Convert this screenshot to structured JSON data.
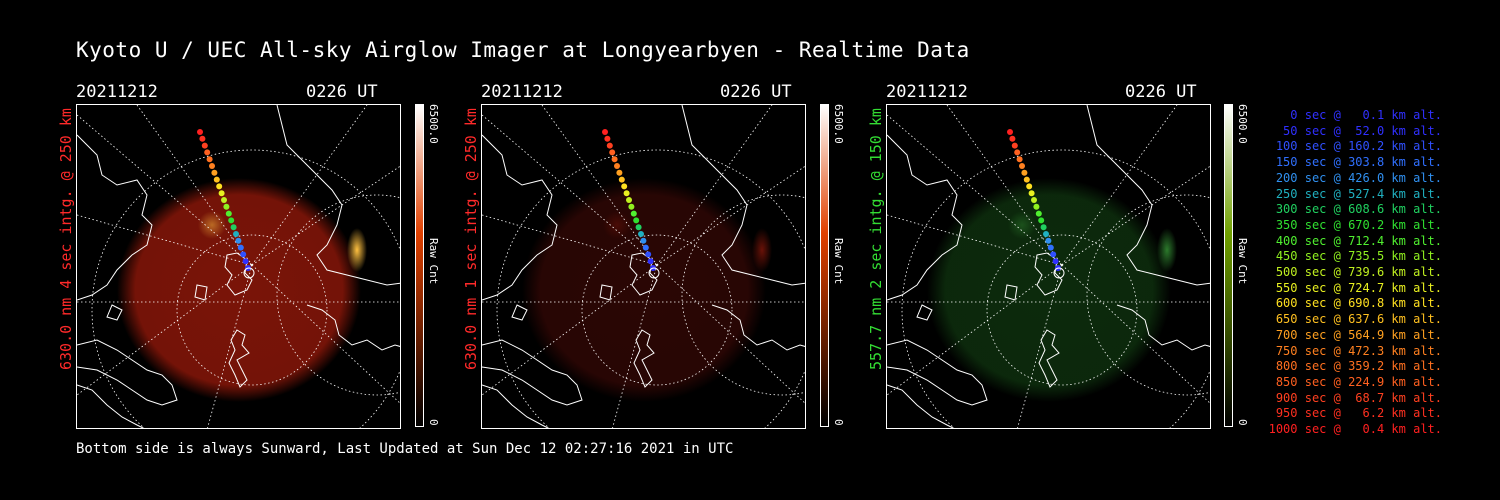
{
  "title": "Kyoto U / UEC All-sky Airglow Imager at Longyearbyen - Realtime Data",
  "panels": [
    {
      "date": "20211212",
      "time": "0226 UT",
      "label": "630.0 nm 4 sec intg. @ 250 km",
      "label_color": "#ff2a2a",
      "cbar_max": "6500.0",
      "cbar_min": "0",
      "cbar_unit": "Raw Cnt",
      "glow_color": "#7a1408",
      "bright_color": "#ffc040",
      "cbar_top": "#ffffff",
      "cbar_mid": "#e04000",
      "cbar_bottom": "#000000"
    },
    {
      "date": "20211212",
      "time": "0226 UT",
      "label": "630.0 nm 1 sec intg. @ 250 km",
      "label_color": "#ff2a2a",
      "cbar_max": "6500.0",
      "cbar_min": "0",
      "cbar_unit": "Raw Cnt",
      "glow_color": "#2a0604",
      "bright_color": "#6a1208",
      "cbar_top": "#ffffff",
      "cbar_mid": "#e04000",
      "cbar_bottom": "#000000"
    },
    {
      "date": "20211212",
      "time": "0226 UT",
      "label": "557.7 nm 2 sec intg. @ 150 km",
      "label_color": "#33dd33",
      "cbar_max": "6500.0",
      "cbar_min": "0",
      "cbar_unit": "Raw Cnt",
      "glow_color": "#0c2a0c",
      "bright_color": "#2c7a2c",
      "cbar_top": "#ffffff",
      "cbar_mid": "#70a000",
      "cbar_bottom": "#000000"
    }
  ],
  "legend": [
    {
      "text": "0 sec @   0.1 km alt.",
      "color": "#3030ff"
    },
    {
      "text": "50 sec @  52.0 km alt.",
      "color": "#3030ff"
    },
    {
      "text": "100 sec @ 160.2 km alt.",
      "color": "#3050ff"
    },
    {
      "text": "150 sec @ 303.8 km alt.",
      "color": "#3070ff"
    },
    {
      "text": "200 sec @ 426.0 km alt.",
      "color": "#3090f0"
    },
    {
      "text": "250 sec @ 527.4 km alt.",
      "color": "#20b0c0"
    },
    {
      "text": "300 sec @ 608.6 km alt.",
      "color": "#20d060"
    },
    {
      "text": "350 sec @ 670.2 km alt.",
      "color": "#30e030"
    },
    {
      "text": "400 sec @ 712.4 km alt.",
      "color": "#50f030"
    },
    {
      "text": "450 sec @ 735.5 km alt.",
      "color": "#90f020"
    },
    {
      "text": "500 sec @ 739.6 km alt.",
      "color": "#c0f020"
    },
    {
      "text": "550 sec @ 724.7 km alt.",
      "color": "#e8f020"
    },
    {
      "text": "600 sec @ 690.8 km alt.",
      "color": "#ffe020"
    },
    {
      "text": "650 sec @ 637.6 km alt.",
      "color": "#ffc020"
    },
    {
      "text": "700 sec @ 564.9 km alt.",
      "color": "#ffa020"
    },
    {
      "text": "750 sec @ 472.3 km alt.",
      "color": "#ff8020"
    },
    {
      "text": "800 sec @ 359.2 km alt.",
      "color": "#ff7020"
    },
    {
      "text": "850 sec @ 224.9 km alt.",
      "color": "#ff6020"
    },
    {
      "text": "900 sec @  68.7 km alt.",
      "color": "#ff4020"
    },
    {
      "text": "950 sec @   6.2 km alt.",
      "color": "#ff3020"
    },
    {
      "text": "1000 sec @   0.4 km alt.",
      "color": "#ff2020"
    }
  ],
  "footer": "Bottom side is always Sunward, Last Updated at Sun Dec 12 02:27:16 2021 in UTC"
}
